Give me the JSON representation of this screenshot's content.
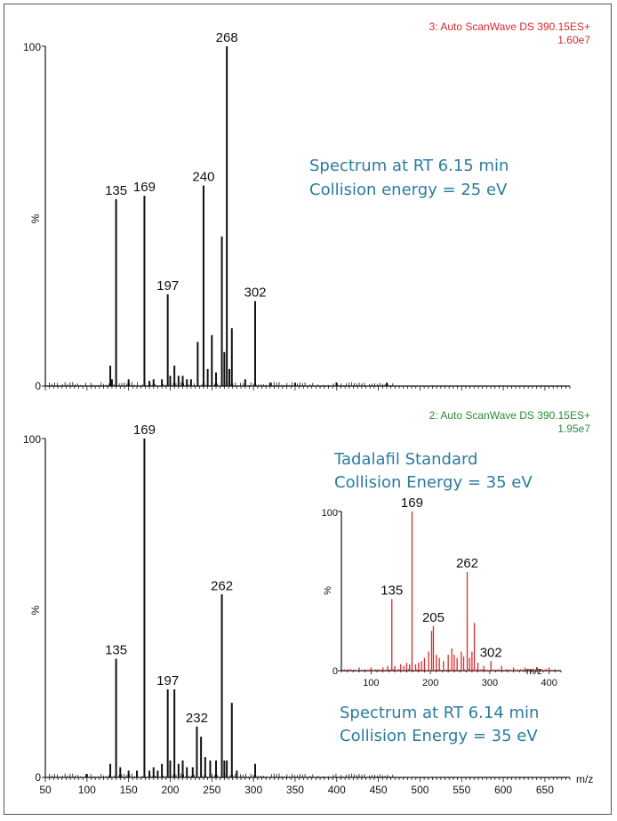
{
  "chart_data": [
    {
      "type": "line",
      "panel": "top",
      "header_line1": "3: Auto ScanWave DS 390.15ES+",
      "header_line2": "1.60e7",
      "header_color": "#d9292c",
      "annotation_line1": "Spectrum at RT 6.15 min",
      "annotation_line2": "Collision energy = 25 eV",
      "ylabel": "%",
      "y_ticks": [
        "100",
        "0"
      ],
      "ylim": [
        0,
        100
      ],
      "xlim": [
        50,
        680
      ],
      "peaks": [
        {
          "x": 128,
          "y": 6
        },
        {
          "x": 130,
          "y": 2
        },
        {
          "x": 135,
          "y": 55
        },
        {
          "x": 150,
          "y": 2
        },
        {
          "x": 169,
          "y": 56
        },
        {
          "x": 175,
          "y": 1.5
        },
        {
          "x": 180,
          "y": 2
        },
        {
          "x": 190,
          "y": 2
        },
        {
          "x": 197,
          "y": 27
        },
        {
          "x": 200,
          "y": 3
        },
        {
          "x": 205,
          "y": 6
        },
        {
          "x": 210,
          "y": 3
        },
        {
          "x": 215,
          "y": 3
        },
        {
          "x": 220,
          "y": 2
        },
        {
          "x": 225,
          "y": 2
        },
        {
          "x": 233,
          "y": 13
        },
        {
          "x": 240,
          "y": 59
        },
        {
          "x": 245,
          "y": 5
        },
        {
          "x": 250,
          "y": 15
        },
        {
          "x": 255,
          "y": 4
        },
        {
          "x": 262,
          "y": 44
        },
        {
          "x": 265,
          "y": 10
        },
        {
          "x": 268,
          "y": 100
        },
        {
          "x": 271,
          "y": 5
        },
        {
          "x": 274,
          "y": 17
        },
        {
          "x": 290,
          "y": 2
        },
        {
          "x": 302,
          "y": 25
        },
        {
          "x": 320,
          "y": 1
        },
        {
          "x": 350,
          "y": 1
        },
        {
          "x": 400,
          "y": 1
        },
        {
          "x": 460,
          "y": 1
        }
      ],
      "labels": [
        {
          "x": 135,
          "y": 55,
          "text": "135"
        },
        {
          "x": 169,
          "y": 56,
          "text": "169"
        },
        {
          "x": 197,
          "y": 27,
          "text": "197"
        },
        {
          "x": 240,
          "y": 59,
          "text": "240"
        },
        {
          "x": 268,
          "y": 100,
          "text": "268"
        },
        {
          "x": 302,
          "y": 25,
          "text": "302"
        }
      ]
    },
    {
      "type": "line",
      "panel": "bottom",
      "header_line1": "2: Auto ScanWave DS 390.15ES+",
      "header_line2": "1.95e7",
      "header_color": "#2a8a3a",
      "annotation_line1": "Tadalafil Standard",
      "annotation_line2": "Collision Energy = 35 eV",
      "annotation_line3": "Spectrum at RT 6.14 min",
      "annotation_line4": "Collision Energy = 35 eV",
      "ylabel": "%",
      "y_ticks": [
        "100",
        "0"
      ],
      "xlabel": "m/z",
      "x_ticks": [
        "50",
        "100",
        "150",
        "200",
        "250",
        "300",
        "350",
        "400",
        "450",
        "500",
        "550",
        "600",
        "650"
      ],
      "ylim": [
        0,
        100
      ],
      "xlim": [
        50,
        680
      ],
      "peaks": [
        {
          "x": 100,
          "y": 1
        },
        {
          "x": 128,
          "y": 4
        },
        {
          "x": 135,
          "y": 35
        },
        {
          "x": 140,
          "y": 3
        },
        {
          "x": 150,
          "y": 2
        },
        {
          "x": 160,
          "y": 2
        },
        {
          "x": 169,
          "y": 100
        },
        {
          "x": 175,
          "y": 2
        },
        {
          "x": 180,
          "y": 3
        },
        {
          "x": 185,
          "y": 2
        },
        {
          "x": 190,
          "y": 4
        },
        {
          "x": 197,
          "y": 26
        },
        {
          "x": 200,
          "y": 5
        },
        {
          "x": 205,
          "y": 26
        },
        {
          "x": 210,
          "y": 4
        },
        {
          "x": 215,
          "y": 5
        },
        {
          "x": 220,
          "y": 3
        },
        {
          "x": 227,
          "y": 3
        },
        {
          "x": 232,
          "y": 15
        },
        {
          "x": 237,
          "y": 12
        },
        {
          "x": 242,
          "y": 6
        },
        {
          "x": 248,
          "y": 5
        },
        {
          "x": 255,
          "y": 5
        },
        {
          "x": 262,
          "y": 54
        },
        {
          "x": 265,
          "y": 5
        },
        {
          "x": 268,
          "y": 5
        },
        {
          "x": 274,
          "y": 22
        },
        {
          "x": 280,
          "y": 2
        },
        {
          "x": 302,
          "y": 4
        }
      ],
      "labels": [
        {
          "x": 135,
          "y": 35,
          "text": "135"
        },
        {
          "x": 169,
          "y": 100,
          "text": "169"
        },
        {
          "x": 197,
          "y": 26,
          "text": "197"
        },
        {
          "x": 232,
          "y": 15,
          "text": "232"
        },
        {
          "x": 262,
          "y": 54,
          "text": "262"
        }
      ]
    },
    {
      "type": "line",
      "panel": "inset",
      "color": "#d9292c",
      "ylabel": "%",
      "y_ticks": [
        "100",
        "0"
      ],
      "xlabel": "m/z",
      "x_ticks": [
        "100",
        "200",
        "300",
        "400"
      ],
      "ylim": [
        0,
        100
      ],
      "xlim": [
        50,
        420
      ],
      "peaks": [
        {
          "x": 80,
          "y": 2
        },
        {
          "x": 100,
          "y": 2
        },
        {
          "x": 120,
          "y": 2
        },
        {
          "x": 128,
          "y": 3
        },
        {
          "x": 135,
          "y": 45
        },
        {
          "x": 140,
          "y": 3
        },
        {
          "x": 150,
          "y": 4
        },
        {
          "x": 155,
          "y": 3
        },
        {
          "x": 160,
          "y": 5
        },
        {
          "x": 165,
          "y": 4
        },
        {
          "x": 169,
          "y": 100
        },
        {
          "x": 175,
          "y": 4
        },
        {
          "x": 180,
          "y": 5
        },
        {
          "x": 185,
          "y": 6
        },
        {
          "x": 190,
          "y": 8
        },
        {
          "x": 197,
          "y": 12
        },
        {
          "x": 202,
          "y": 25
        },
        {
          "x": 205,
          "y": 28
        },
        {
          "x": 210,
          "y": 10
        },
        {
          "x": 215,
          "y": 8
        },
        {
          "x": 222,
          "y": 6
        },
        {
          "x": 230,
          "y": 10
        },
        {
          "x": 236,
          "y": 14
        },
        {
          "x": 240,
          "y": 10
        },
        {
          "x": 245,
          "y": 8
        },
        {
          "x": 252,
          "y": 12
        },
        {
          "x": 256,
          "y": 9
        },
        {
          "x": 262,
          "y": 62
        },
        {
          "x": 266,
          "y": 8
        },
        {
          "x": 270,
          "y": 12
        },
        {
          "x": 274,
          "y": 30
        },
        {
          "x": 280,
          "y": 5
        },
        {
          "x": 290,
          "y": 3
        },
        {
          "x": 302,
          "y": 6
        },
        {
          "x": 320,
          "y": 3
        },
        {
          "x": 340,
          "y": 2
        },
        {
          "x": 360,
          "y": 2
        },
        {
          "x": 380,
          "y": 2
        },
        {
          "x": 400,
          "y": 2
        }
      ],
      "labels": [
        {
          "x": 135,
          "y": 45,
          "text": "135"
        },
        {
          "x": 169,
          "y": 100,
          "text": "169"
        },
        {
          "x": 205,
          "y": 28,
          "text": "205"
        },
        {
          "x": 262,
          "y": 62,
          "text": "262"
        },
        {
          "x": 302,
          "y": 6,
          "text": "302"
        }
      ]
    }
  ]
}
